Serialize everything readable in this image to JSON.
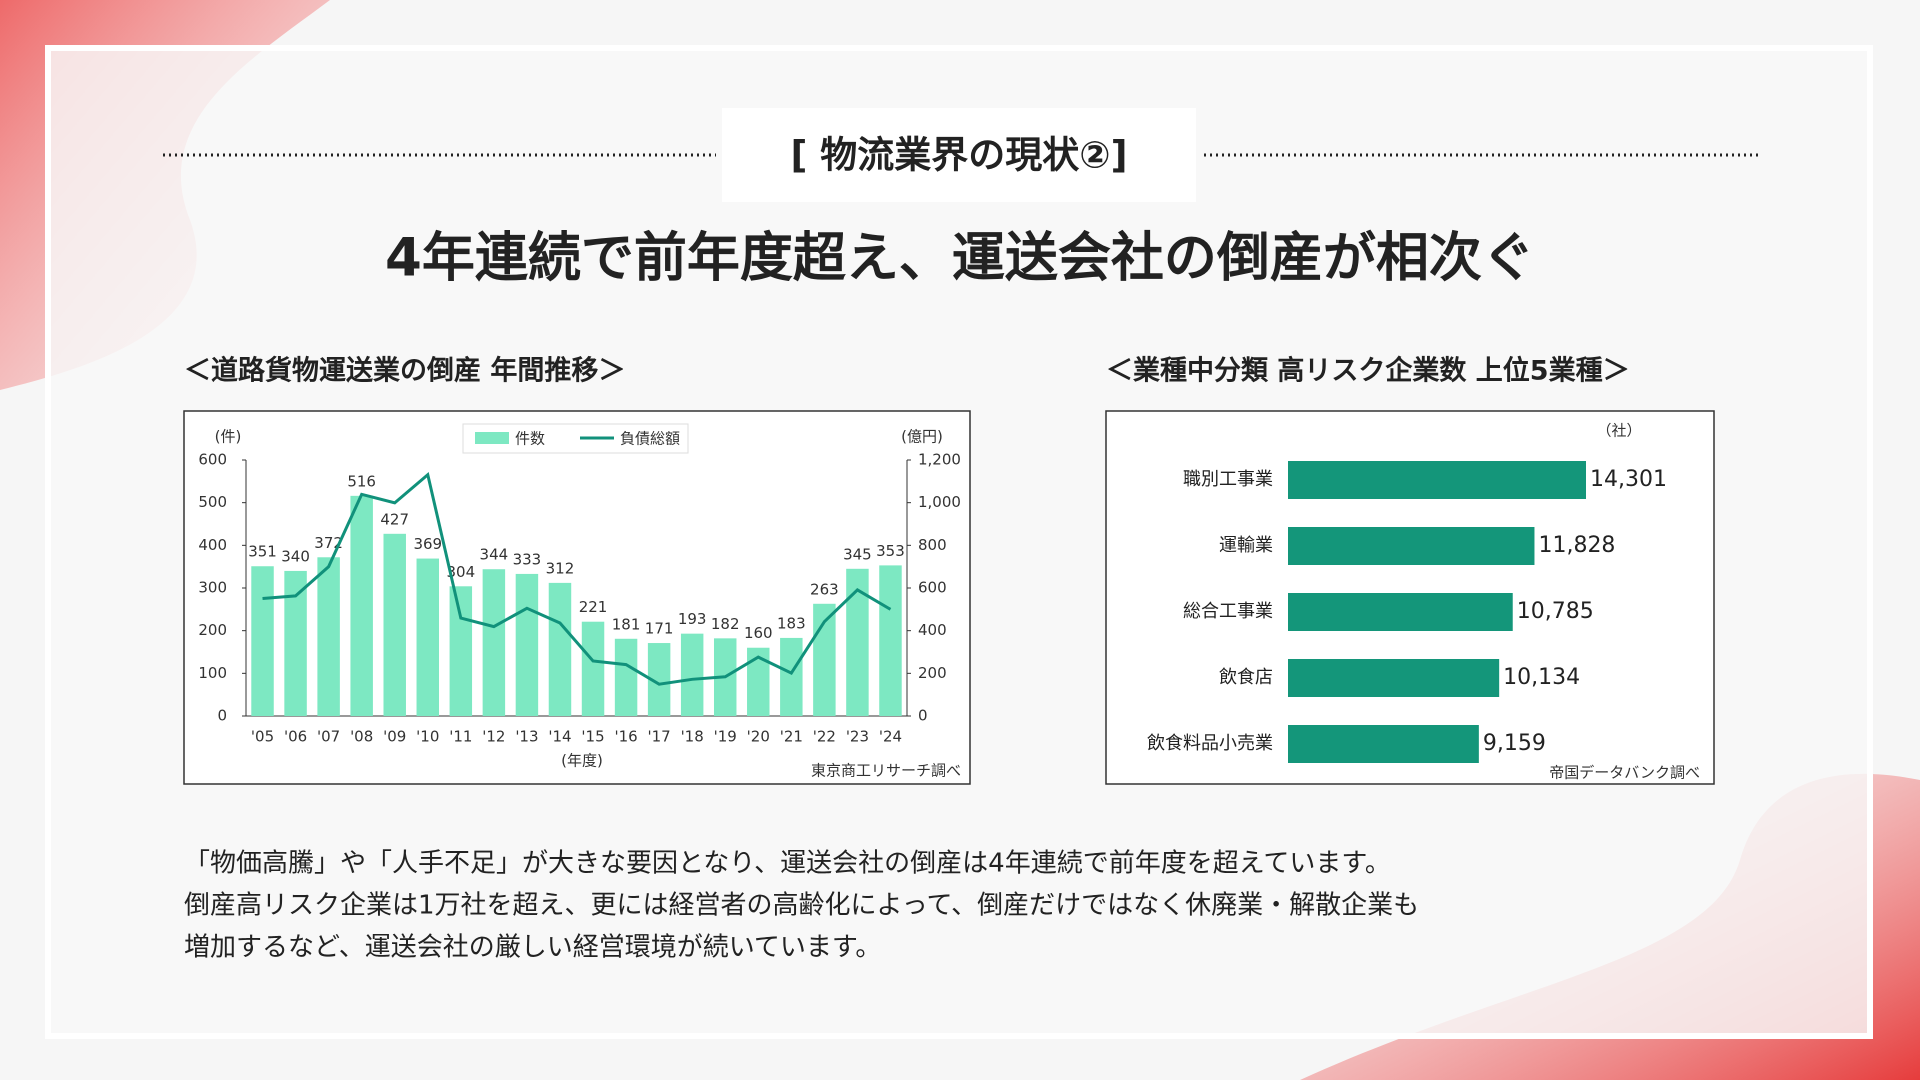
{
  "slide": {
    "label": "[ 物流業界の現状②]",
    "title": "4年連続で前年度超え、運送会社の倒産が相次ぐ",
    "body": [
      "「物価高騰」や「人手不足」が大きな要因となり、運送会社の倒産は4年連続で前年度を超えています。",
      "倒産高リスク企業は1万社を超え、更には経営者の高齢化によって、倒産だけではなく休廃業・解散企業も",
      "増加するなど、運送会社の厳しい経営環境が続いています。"
    ]
  },
  "chart_data": [
    {
      "type": "bar",
      "title": "＜道路貨物運送業の倒産 年間推移＞",
      "categories": [
        "'05",
        "'06",
        "'07",
        "'08",
        "'09",
        "'10",
        "'11",
        "'12",
        "'13",
        "'14",
        "'15",
        "'16",
        "'17",
        "'18",
        "'19",
        "'20",
        "'21",
        "'22",
        "'23",
        "'24"
      ],
      "series": [
        {
          "name": "件数",
          "color": "#7de8c2",
          "values": [
            351,
            340,
            372,
            516,
            427,
            369,
            304,
            344,
            333,
            312,
            221,
            181,
            171,
            193,
            182,
            160,
            183,
            263,
            345,
            353
          ]
        },
        {
          "name": "負債総額",
          "color": "#11917b",
          "type": "line",
          "axis": "y2",
          "values": [
            551,
            563,
            700,
            1039,
            999,
            1131,
            459,
            419,
            505,
            436,
            258,
            241,
            149,
            172,
            184,
            276,
            201,
            442,
            591,
            500
          ]
        }
      ],
      "ylim": [
        0,
        600
      ],
      "yticks": [
        0,
        100,
        200,
        300,
        400,
        500,
        600
      ],
      "y2lim": [
        0,
        1200
      ],
      "y2ticks": [
        0,
        200,
        400,
        600,
        800,
        {
          "value": 1000,
          "label": "1,000"
        },
        {
          "value": 1200,
          "label": "1,200"
        }
      ],
      "ylabel": "(件)",
      "y2label": "(億円)",
      "xlabel": "(年度)",
      "source": "東京商工リサーチ調べ",
      "data_labels": true
    },
    {
      "type": "barh",
      "title": "＜業種中分類 高リスク企業数 上位5業種＞",
      "categories": [
        "職別工事業",
        "運輸業",
        "総合工事業",
        "飲食店",
        "飲食料品小売業"
      ],
      "values": [
        14301,
        11828,
        10785,
        10134,
        9159
      ],
      "value_labels": [
        "14,301",
        "11,828",
        "10,785",
        "10,134",
        "9,159"
      ],
      "color": "#14967a",
      "unit_label": "（社）",
      "source": "帝国データバンク調べ"
    }
  ]
}
